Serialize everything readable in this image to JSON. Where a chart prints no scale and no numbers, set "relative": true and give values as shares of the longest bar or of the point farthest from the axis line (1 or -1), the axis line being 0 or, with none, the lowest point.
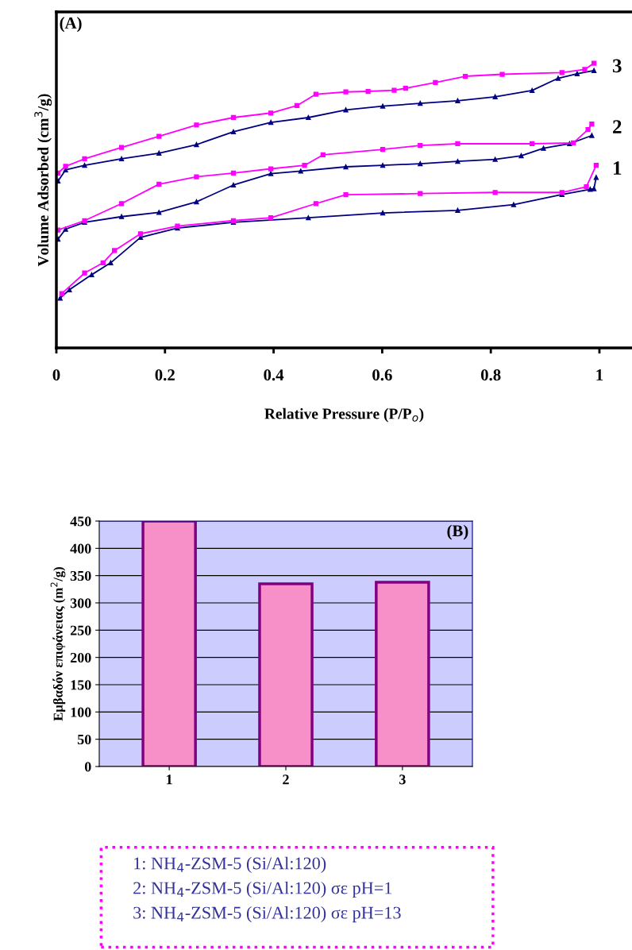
{
  "chart_data": [
    {
      "type": "line",
      "title": "(A)",
      "xlabel": "Relative Pressure (P/P$_{o}$)",
      "ylabel": "Volume Adsorbed (cm$^{3}$/g)",
      "relative": true,
      "xlim": [
        0,
        1.06
      ],
      "xticks": [
        0,
        0.2,
        0.4,
        0.6,
        0.8,
        1
      ],
      "grid": false,
      "legend": false,
      "tick_labels": "x",
      "series": [
        {
          "color": "#000080",
          "marker": "triangle",
          "x": [
            0.007,
            0.024,
            0.065,
            0.1,
            0.155,
            0.223,
            0.326,
            0.464,
            0.601,
            0.739,
            0.842,
            0.931,
            0.983,
            0.99,
            0.994
          ],
          "values": [
            0.175,
            0.204,
            0.257,
            0.299,
            0.388,
            0.421,
            0.441,
            0.457,
            0.474,
            0.483,
            0.503,
            0.539,
            0.557,
            0.559,
            0.599
          ]
        },
        {
          "color": "#ff00ff",
          "marker": "square",
          "x": [
            0.994,
            0.976,
            0.931,
            0.808,
            0.67,
            0.533,
            0.478,
            0.395,
            0.326,
            0.223,
            0.155,
            0.107,
            0.086,
            0.052,
            0.01
          ],
          "values": [
            0.641,
            0.566,
            0.546,
            0.546,
            0.542,
            0.538,
            0.507,
            0.457,
            0.447,
            0.428,
            0.401,
            0.342,
            0.299,
            0.263,
            0.191
          ]
        },
        {
          "color": "#000080",
          "marker": "triangle",
          "x": [
            0.003,
            0.017,
            0.052,
            0.12,
            0.189,
            0.258,
            0.326,
            0.395,
            0.45,
            0.533,
            0.601,
            0.67,
            0.739,
            0.808,
            0.856,
            0.897,
            0.945,
            0.986
          ],
          "values": [
            0.382,
            0.417,
            0.441,
            0.461,
            0.476,
            0.513,
            0.572,
            0.612,
            0.621,
            0.636,
            0.641,
            0.647,
            0.655,
            0.662,
            0.675,
            0.701,
            0.717,
            0.746
          ]
        },
        {
          "color": "#ff00ff",
          "marker": "square",
          "x": [
            0.986,
            0.979,
            0.952,
            0.876,
            0.739,
            0.67,
            0.601,
            0.491,
            0.457,
            0.395,
            0.326,
            0.258,
            0.189,
            0.12,
            0.052,
            0.003
          ],
          "values": [
            0.786,
            0.767,
            0.72,
            0.717,
            0.717,
            0.711,
            0.697,
            0.678,
            0.641,
            0.629,
            0.614,
            0.601,
            0.575,
            0.507,
            0.447,
            0.414
          ]
        },
        {
          "color": "#000080",
          "marker": "triangle",
          "x": [
            0.003,
            0.017,
            0.052,
            0.12,
            0.189,
            0.258,
            0.326,
            0.395,
            0.464,
            0.533,
            0.601,
            0.67,
            0.739,
            0.808,
            0.876,
            0.924,
            0.959,
            0.99
          ],
          "values": [
            0.586,
            0.625,
            0.641,
            0.664,
            0.684,
            0.714,
            0.759,
            0.792,
            0.809,
            0.836,
            0.849,
            0.859,
            0.868,
            0.882,
            0.904,
            0.947,
            0.963,
            0.974
          ]
        },
        {
          "color": "#ff00ff",
          "marker": "square",
          "x": [
            0.99,
            0.973,
            0.931,
            0.821,
            0.753,
            0.698,
            0.643,
            0.622,
            0.574,
            0.533,
            0.478,
            0.443,
            0.395,
            0.326,
            0.258,
            0.189,
            0.12,
            0.052,
            0.017,
            0.003
          ],
          "values": [
            1.0,
            0.978,
            0.967,
            0.961,
            0.954,
            0.932,
            0.912,
            0.905,
            0.901,
            0.899,
            0.891,
            0.851,
            0.825,
            0.809,
            0.783,
            0.743,
            0.704,
            0.664,
            0.638,
            0.614
          ]
        }
      ],
      "annotations": [
        "1",
        "2",
        "3"
      ]
    },
    {
      "type": "bar",
      "title": "(B)",
      "ylabel": "Εμβαδόν επιφάνειας (m$^{2}$/g)",
      "categories": [
        "1",
        "2",
        "3"
      ],
      "values": [
        450,
        335,
        338
      ],
      "color": "#f78fc8",
      "ylim": [
        0,
        450
      ],
      "yticks": [
        0,
        50,
        100,
        150,
        200,
        250,
        300,
        350,
        400,
        450
      ],
      "grid": "y",
      "annotations": [
        "1: NH$_{4}$-ZSM-5 (Si/Al:120)",
        "2: NH$_{4}$-ZSM-5 (Si/Al:120) σε pH=1",
        "3: NH$_{4}$-ZSM-5 (Si/Al:120) σε pH=13"
      ]
    }
  ]
}
